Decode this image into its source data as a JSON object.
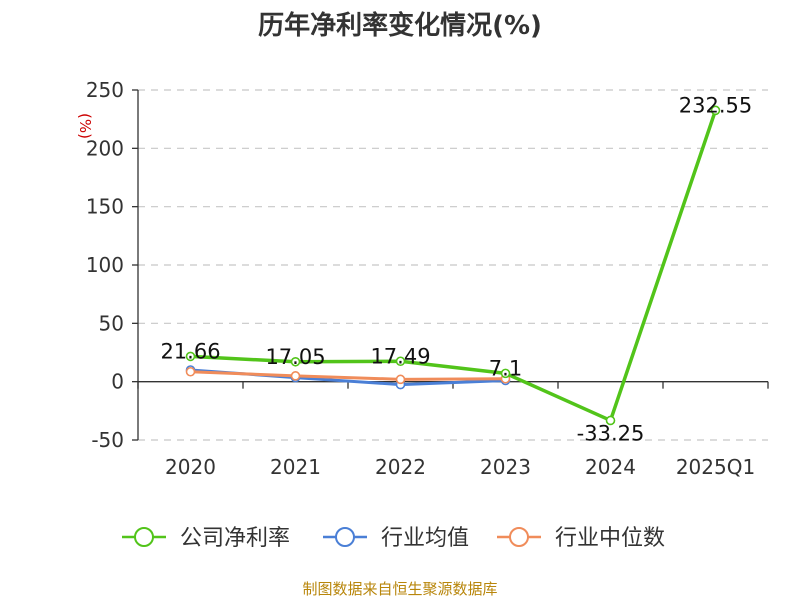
{
  "chart_data": {
    "type": "line",
    "title": "历年净利率变化情况(%)",
    "ylabel": "(%)",
    "xlabel": "",
    "categories": [
      "2020",
      "2021",
      "2022",
      "2023",
      "2024",
      "2025Q1"
    ],
    "ylim": [
      -50,
      250
    ],
    "yticks": [
      -50,
      0,
      50,
      100,
      150,
      200,
      250
    ],
    "grid": true,
    "legend_position": "bottom",
    "series": [
      {
        "name": "公司净利率",
        "color": "#52c41a",
        "values": [
          21.66,
          17.05,
          17.49,
          7.1,
          -33.25,
          232.55
        ],
        "labels": [
          "21.66",
          "17.05",
          "17.49",
          "7.1",
          "-33.25",
          "232.55"
        ]
      },
      {
        "name": "行业均值",
        "color": "#4a7fd6",
        "values": [
          10.0,
          3.5,
          -2.5,
          1.0,
          null,
          null
        ]
      },
      {
        "name": "行业中位数",
        "color": "#f08c5a",
        "values": [
          8.5,
          5.0,
          2.0,
          2.5,
          null,
          null
        ]
      }
    ]
  },
  "source": "制图数据来自恒生聚源数据库"
}
